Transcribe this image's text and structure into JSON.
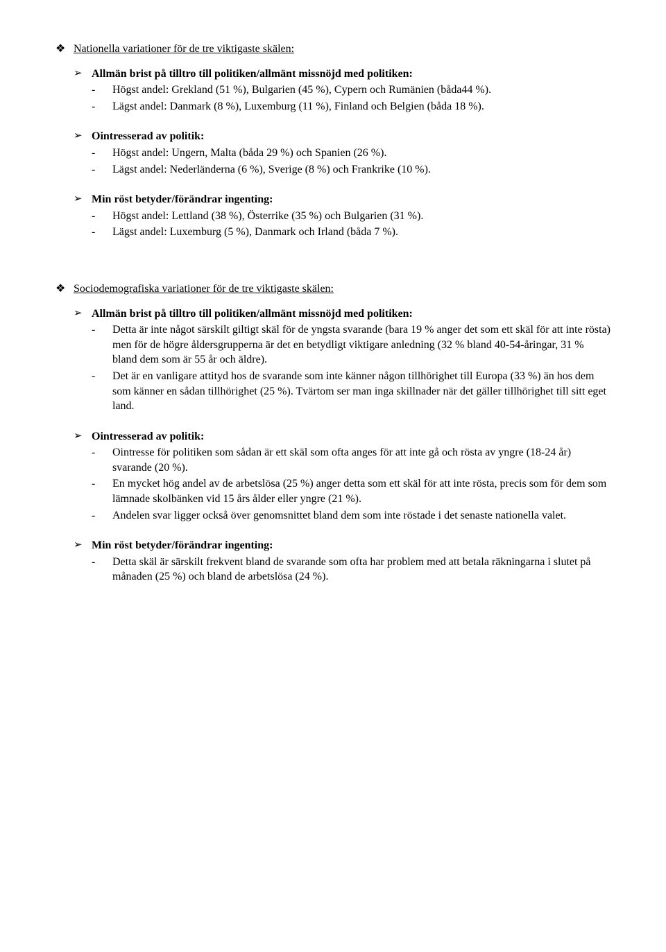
{
  "section1": {
    "heading": "Nationella variationer för de tre viktigaste skälen:",
    "groups": [
      {
        "title": "Allmän brist på tilltro till politiken/allmänt missnöjd med politiken:",
        "items": [
          "Högst andel: Grekland (51 %), Bulgarien (45 %), Cypern och Rumänien (båda44 %).",
          "Lägst andel: Danmark (8 %), Luxemburg (11 %), Finland och Belgien (båda 18 %)."
        ]
      },
      {
        "title": "Ointresserad av politik:",
        "items": [
          "Högst andel: Ungern, Malta (båda 29 %) och Spanien (26 %).",
          "Lägst andel: Nederländerna (6 %), Sverige (8 %) och Frankrike (10 %)."
        ]
      },
      {
        "title": "Min röst betyder/förändrar ingenting:",
        "items": [
          "Högst andel: Lettland (38 %), Österrike (35 %) och Bulgarien (31 %).",
          "Lägst andel: Luxemburg (5 %), Danmark och Irland (båda 7 %)."
        ]
      }
    ]
  },
  "section2": {
    "heading": "Sociodemografiska variationer för de tre viktigaste skälen:",
    "groups": [
      {
        "title": "Allmän brist på tilltro till politiken/allmänt missnöjd med politiken:",
        "items": [
          "Detta är inte något särskilt giltigt skäl för de yngsta svarande (bara 19 % anger det som ett skäl för att inte rösta) men för de högre åldersgrupperna är det en betydligt viktigare anledning (32 % bland 40-54-åringar, 31 % bland dem som är 55 år och äldre).",
          "Det är en vanligare attityd hos de svarande som inte känner någon tillhörighet till Europa (33 %) än hos dem som känner en sådan tillhörighet (25 %). Tvärtom ser man inga skillnader när det gäller tillhörighet till sitt eget land."
        ]
      },
      {
        "title": "Ointresserad av politik:",
        "items": [
          "Ointresse för politiken som sådan är ett skäl som ofta anges för att inte gå och rösta av yngre (18-24 år) svarande (20 %).",
          "En mycket hög andel av de arbetslösa (25 %) anger detta som ett skäl för att inte rösta, precis som för dem som lämnade skolbänken vid 15 års ålder eller yngre (21 %).",
          "Andelen svar ligger också över genomsnittet bland dem som inte röstade i det senaste nationella valet."
        ]
      },
      {
        "title": "Min röst betyder/förändrar ingenting:",
        "items": [
          "Detta skäl är särskilt frekvent bland de svarande som ofta har problem med att betala räkningarna i slutet på månaden (25 %) och bland de arbetslösa (24 %)."
        ]
      }
    ]
  }
}
